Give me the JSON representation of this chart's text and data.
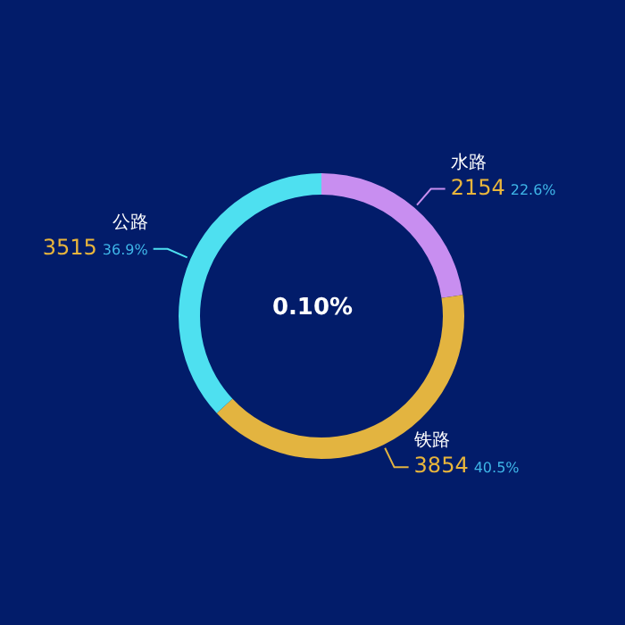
{
  "chart_data": {
    "type": "donut",
    "categories": [
      "水路",
      "铁路",
      "公路"
    ],
    "values": [
      2154,
      3854,
      3515
    ],
    "colors": [
      "#c88ef0",
      "#e3b440",
      "#4ee0f0"
    ],
    "value_labels": [
      "2154 22.6%",
      "3854 40.5%",
      "3515 36.9%"
    ],
    "annotations": [
      "0.10%"
    ],
    "legend": false
  }
}
